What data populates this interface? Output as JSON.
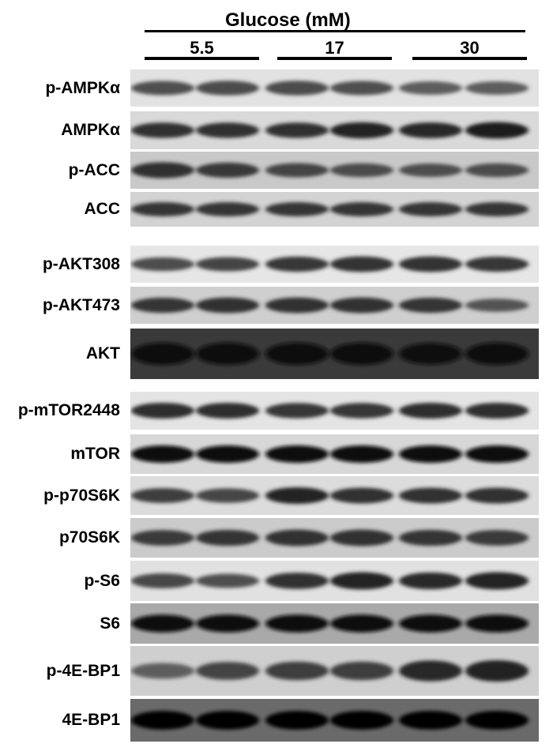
{
  "header": {
    "title": "Glucose (mM)",
    "groups": [
      "5.5",
      "17",
      "30"
    ]
  },
  "blots": [
    {
      "label": "p-AMPKα",
      "bg": "#e2e2e2",
      "band_color": "#353535",
      "bands": [
        0.75,
        0.8,
        0.8,
        0.75,
        0.65,
        0.65
      ]
    },
    {
      "label": "AMPKα",
      "bg": "#d9d9d9",
      "band_color": "#1e1e1e",
      "bands": [
        0.85,
        0.85,
        0.85,
        0.95,
        0.9,
        1.0
      ]
    },
    {
      "label": "p-ACC",
      "bg": "#c9c9c9",
      "band_color": "#2a2a2a",
      "bands": [
        0.95,
        0.85,
        0.75,
        0.7,
        0.65,
        0.7
      ]
    },
    {
      "label": "ACC",
      "bg": "#d3d3d3",
      "band_color": "#252525",
      "bands": [
        0.85,
        0.85,
        0.85,
        0.85,
        0.85,
        0.85
      ]
    },
    {
      "label": "p-AKT308",
      "bg": "#e6e6e6",
      "band_color": "#262626",
      "bands": [
        0.7,
        0.75,
        0.85,
        0.9,
        0.9,
        0.85
      ]
    },
    {
      "label": "p-AKT473",
      "bg": "#cfcfcf",
      "band_color": "#262626",
      "bands": [
        0.85,
        0.9,
        0.9,
        0.9,
        0.85,
        0.6
      ]
    },
    {
      "label": "AKT",
      "bg": "#3a3a3a",
      "band_color": "#0c0c0c",
      "bands": [
        1.0,
        1.0,
        1.0,
        1.0,
        0.95,
        1.0
      ]
    },
    {
      "label": "p-mTOR2448",
      "bg": "#e4e4e4",
      "band_color": "#222222",
      "bands": [
        0.9,
        0.9,
        0.85,
        0.85,
        0.9,
        0.9
      ]
    },
    {
      "label": "mTOR",
      "bg": "#d7d7d7",
      "band_color": "#080808",
      "bands": [
        1.0,
        1.0,
        1.0,
        1.0,
        1.0,
        1.0
      ]
    },
    {
      "label": "p-p70S6K",
      "bg": "#dcdcdc",
      "band_color": "#1e1e1e",
      "bands": [
        0.75,
        0.7,
        0.95,
        0.85,
        0.85,
        0.85
      ]
    },
    {
      "label": "p70S6K",
      "bg": "#cbcbcb",
      "band_color": "#262626",
      "bands": [
        0.8,
        0.85,
        0.9,
        0.9,
        0.85,
        0.8
      ]
    },
    {
      "label": "p-S6",
      "bg": "#e1e1e1",
      "band_color": "#1e1e1e",
      "bands": [
        0.7,
        0.6,
        0.85,
        0.95,
        0.9,
        0.95
      ]
    },
    {
      "label": "S6",
      "bg": "#a9a9a9",
      "band_color": "#111111",
      "bands": [
        1.0,
        1.0,
        1.0,
        1.0,
        1.0,
        1.0
      ]
    },
    {
      "label": "p-4E-BP1",
      "bg": "#cfcfcf",
      "band_color": "#1c1c1c",
      "bands": [
        0.45,
        0.65,
        0.7,
        0.7,
        0.9,
        0.95
      ]
    },
    {
      "label": "4E-BP1",
      "bg": "#6a6a6a",
      "band_color": "#060606",
      "bands": [
        1.0,
        1.0,
        1.0,
        1.0,
        1.0,
        1.0
      ]
    }
  ]
}
